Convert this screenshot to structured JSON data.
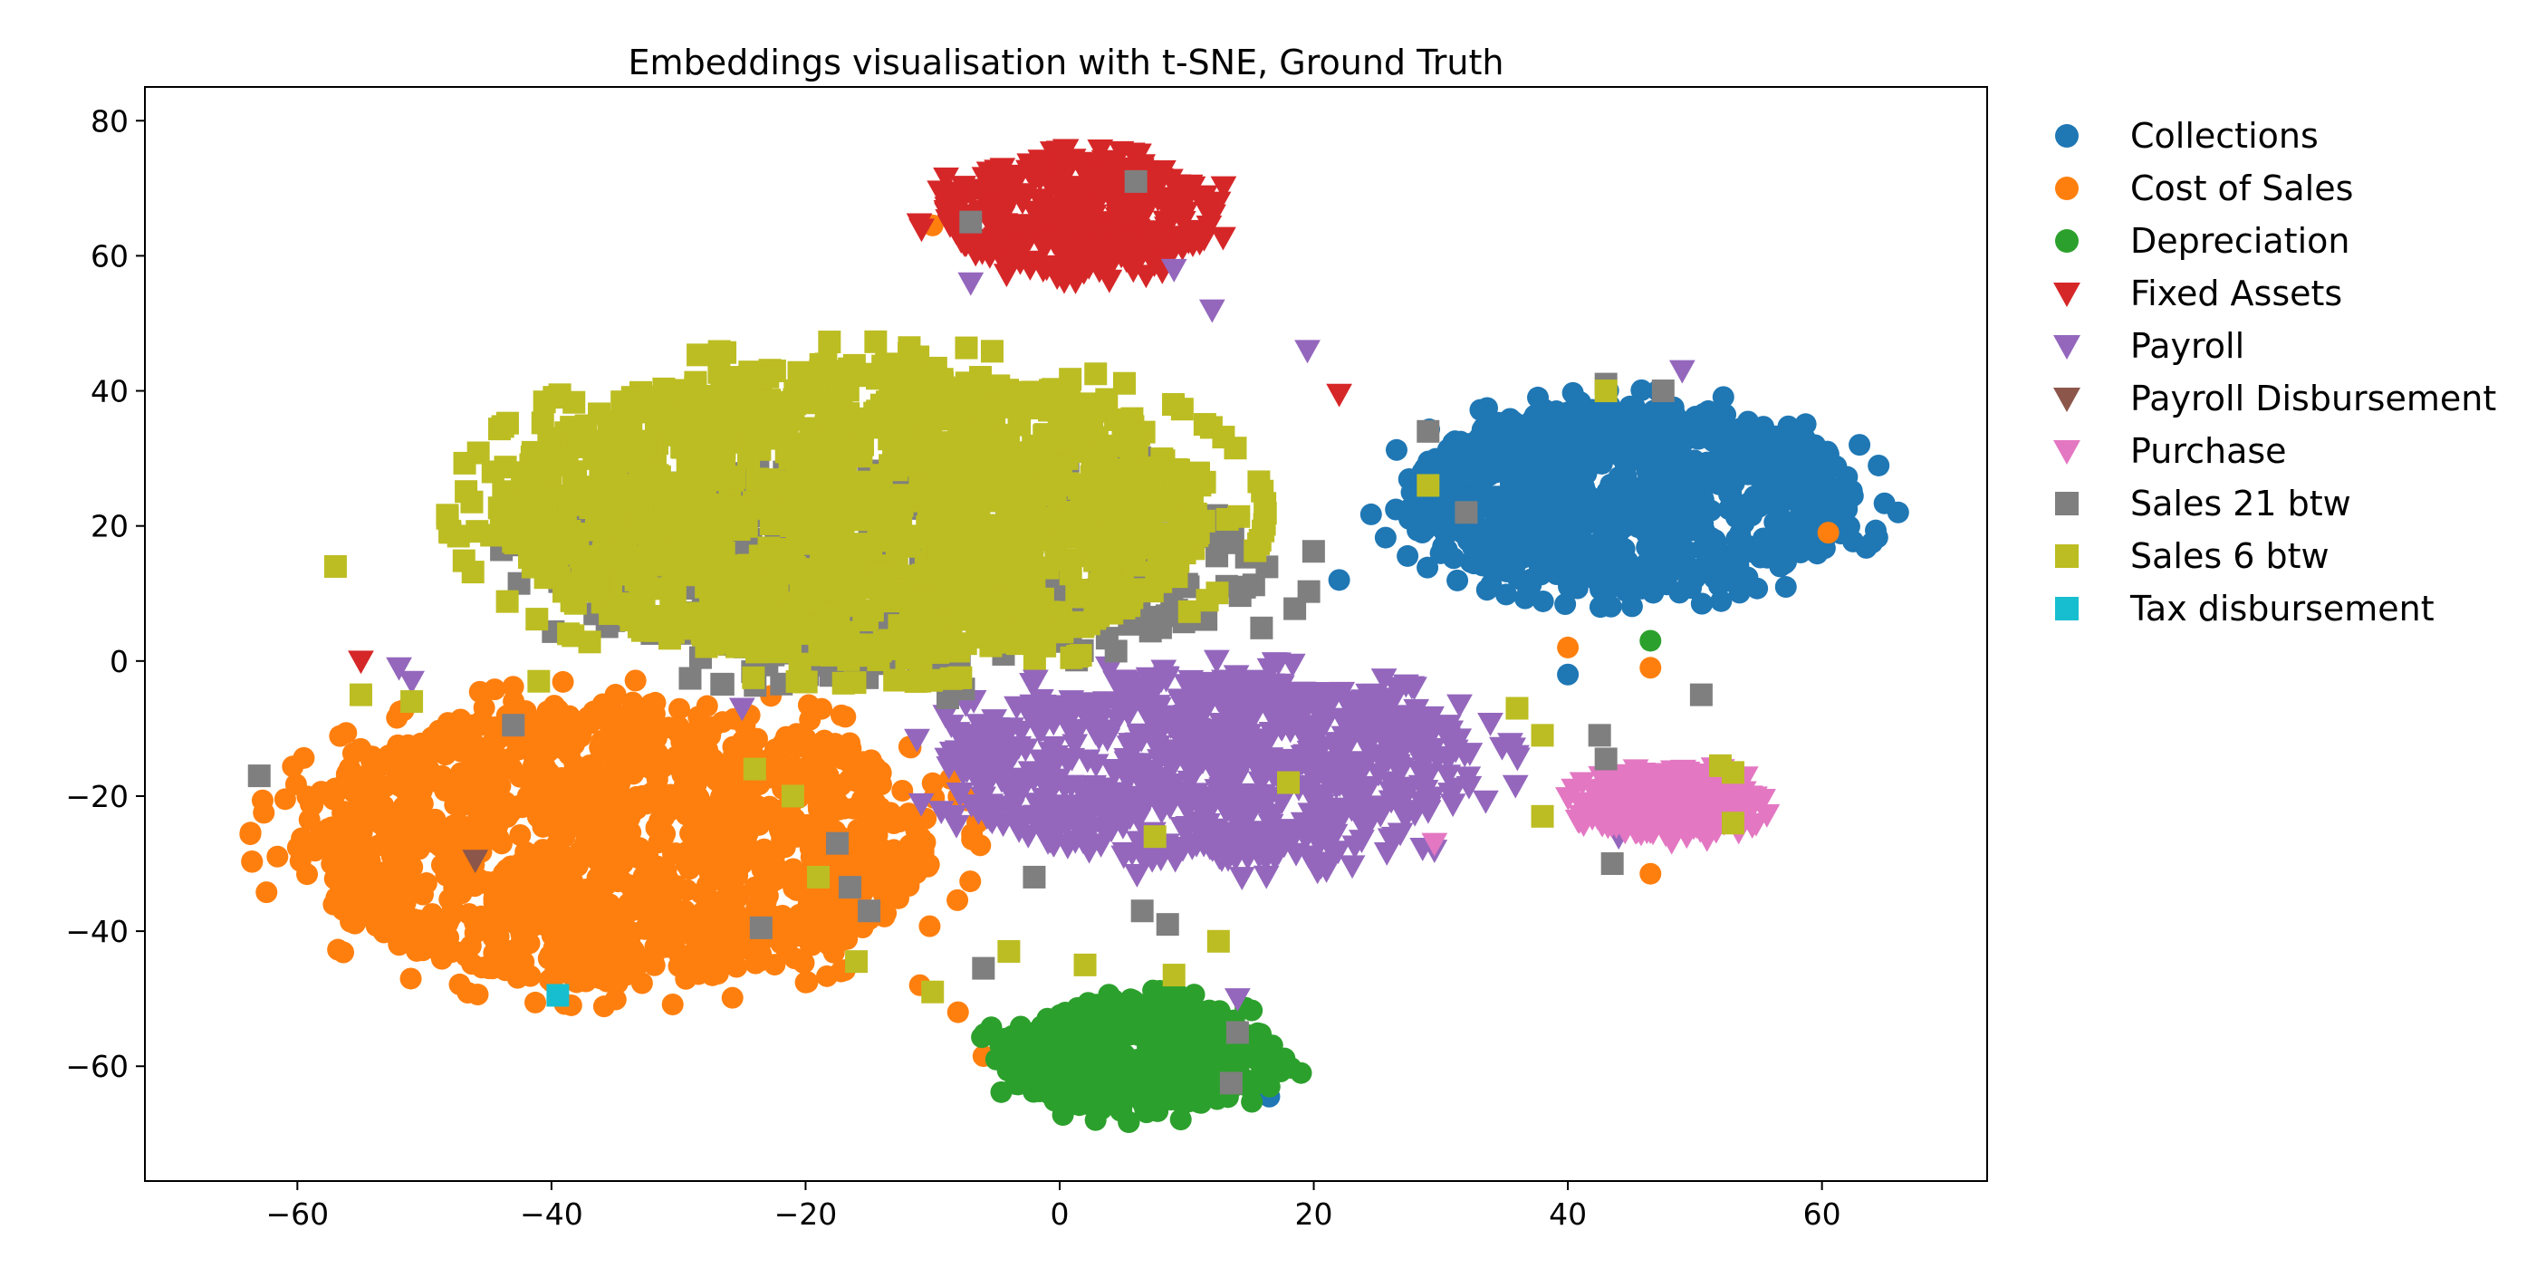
{
  "chart_data": {
    "type": "scatter",
    "title": "Embeddings visualisation with t-SNE, Ground Truth",
    "xlabel": "",
    "ylabel": "",
    "xlim": [
      -72,
      73
    ],
    "ylim": [
      -77,
      85
    ],
    "xticks": [
      -60,
      -40,
      -20,
      0,
      20,
      40,
      60
    ],
    "yticks": [
      -60,
      -40,
      -20,
      0,
      20,
      40,
      60,
      80
    ],
    "grid": false,
    "legend_position": "outside-right",
    "series": [
      {
        "name": "Collections",
        "marker": "circle",
        "color": "#1f77b4",
        "clusters": [
          {
            "cx": 45,
            "cy": 24,
            "rx": 18,
            "ry": 14,
            "n": 900
          }
        ],
        "points": [
          [
            16.5,
            -64.5
          ],
          [
            66,
            22
          ],
          [
            22,
            12
          ],
          [
            40,
            -2
          ]
        ]
      },
      {
        "name": "Cost of Sales",
        "marker": "circle",
        "color": "#ff7f0e",
        "clusters": [
          {
            "cx": -35,
            "cy": -27,
            "rx": 25,
            "ry": 21,
            "n": 1400
          }
        ],
        "points": [
          [
            -10,
            64.5
          ],
          [
            60.5,
            19
          ],
          [
            40,
            2
          ],
          [
            46.5,
            -1
          ],
          [
            46.5,
            -31.5
          ],
          [
            -6,
            -58.5
          ],
          [
            -8,
            -52
          ],
          [
            -11,
            -48
          ]
        ]
      },
      {
        "name": "Depreciation",
        "marker": "circle",
        "color": "#2ca02c",
        "clusters": [
          {
            "cx": 6,
            "cy": -58.5,
            "rx": 11,
            "ry": 8.5,
            "n": 450
          }
        ],
        "points": [
          [
            19,
            -61
          ],
          [
            46.5,
            3
          ],
          [
            -5,
            -59
          ]
        ]
      },
      {
        "name": "Fixed Assets",
        "marker": "triangle-down",
        "color": "#d62728",
        "clusters": [
          {
            "cx": 1.5,
            "cy": 66,
            "rx": 11,
            "ry": 8.5,
            "n": 420
          }
        ],
        "points": [
          [
            -55,
            0
          ],
          [
            22,
            39.5
          ]
        ]
      },
      {
        "name": "Payroll",
        "marker": "triangle-down",
        "color": "#9467bd",
        "clusters": [
          {
            "cx": 12,
            "cy": -16,
            "rx": 21,
            "ry": 14,
            "n": 850
          }
        ],
        "points": [
          [
            -7,
            56
          ],
          [
            9,
            58
          ],
          [
            12,
            52
          ],
          [
            19.5,
            46
          ],
          [
            29.5,
            -28
          ],
          [
            49,
            43
          ],
          [
            -52,
            -1
          ],
          [
            -25,
            -7
          ],
          [
            14,
            -50
          ],
          [
            -51,
            -3
          ],
          [
            44,
            -26
          ]
        ]
      },
      {
        "name": "Payroll Disbursement",
        "marker": "triangle-down",
        "color": "#8c564b",
        "clusters": [],
        "points": [
          [
            -46,
            -29.5
          ]
        ]
      },
      {
        "name": "Purchase",
        "marker": "triangle-down",
        "color": "#e377c2",
        "clusters": [
          {
            "cx": 48,
            "cy": -21,
            "rx": 7,
            "ry": 5,
            "n": 260
          }
        ],
        "points": [
          [
            29.5,
            -27
          ]
        ]
      },
      {
        "name": "Sales 21 btw",
        "marker": "square",
        "color": "#7f7f7f",
        "clusters": [
          {
            "cx": -12,
            "cy": 14,
            "rx": 28,
            "ry": 17,
            "n": 420
          }
        ],
        "points": [
          [
            -7,
            65
          ],
          [
            6,
            71
          ],
          [
            29,
            34
          ],
          [
            32,
            22
          ],
          [
            43,
            41
          ],
          [
            47.5,
            40
          ],
          [
            50.5,
            -5
          ],
          [
            42.5,
            -11
          ],
          [
            43,
            -14.5
          ],
          [
            43.5,
            -30
          ],
          [
            -63,
            -17
          ],
          [
            -43,
            -9.5
          ],
          [
            -23.5,
            -39.5
          ],
          [
            -6,
            -45.5
          ],
          [
            -2,
            -32
          ],
          [
            6.5,
            -37
          ],
          [
            8.5,
            -39
          ],
          [
            14,
            -55
          ],
          [
            13.5,
            -62.5
          ],
          [
            -17.5,
            -27
          ],
          [
            -16.5,
            -33.5
          ],
          [
            -15,
            -37
          ]
        ]
      },
      {
        "name": "Sales 6 btw",
        "marker": "square",
        "color": "#bcbd22",
        "clusters": [
          {
            "cx": -16,
            "cy": 22,
            "rx": 28,
            "ry": 22,
            "n": 1500
          }
        ],
        "points": [
          [
            -57,
            14
          ],
          [
            -55,
            -5
          ],
          [
            -51,
            -6
          ],
          [
            -41,
            -3
          ],
          [
            -24,
            -16
          ],
          [
            -21,
            -20
          ],
          [
            -19,
            -32
          ],
          [
            -16,
            -44.5
          ],
          [
            -10,
            -49
          ],
          [
            -4,
            -43
          ],
          [
            2,
            -45
          ],
          [
            9,
            -46.5
          ],
          [
            12.5,
            -41.5
          ],
          [
            7.5,
            -26
          ],
          [
            18,
            -18
          ],
          [
            29,
            26
          ],
          [
            36,
            -7
          ],
          [
            38,
            -11
          ],
          [
            38,
            -23
          ],
          [
            43,
            40
          ],
          [
            52,
            -15.5
          ],
          [
            53,
            -24
          ],
          [
            53,
            -16.5
          ]
        ]
      },
      {
        "name": "Tax disbursement",
        "marker": "square",
        "color": "#17becf",
        "clusters": [],
        "points": [
          [
            -39.5,
            -49.5
          ]
        ]
      }
    ]
  }
}
